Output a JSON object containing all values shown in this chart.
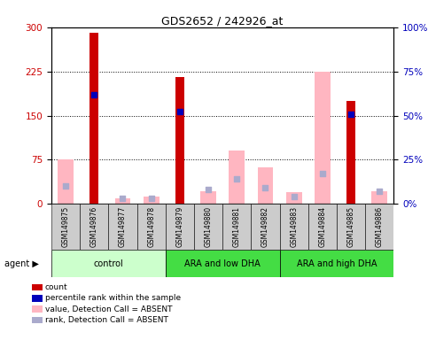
{
  "title": "GDS2652 / 242926_at",
  "samples": [
    "GSM149875",
    "GSM149876",
    "GSM149877",
    "GSM149878",
    "GSM149879",
    "GSM149880",
    "GSM149881",
    "GSM149882",
    "GSM149883",
    "GSM149884",
    "GSM149885",
    "GSM149886"
  ],
  "group_defs": [
    {
      "label": "control",
      "bg": "#CCFFCC",
      "start": 0,
      "end": 4
    },
    {
      "label": "ARA and low DHA",
      "bg": "#44DD44",
      "start": 4,
      "end": 8
    },
    {
      "label": "ARA and high DHA",
      "bg": "#44DD44",
      "start": 8,
      "end": 12
    }
  ],
  "count_values": [
    null,
    290,
    null,
    null,
    215,
    null,
    null,
    null,
    null,
    null,
    175,
    null
  ],
  "percentile_values": [
    null,
    185,
    null,
    null,
    157,
    null,
    null,
    null,
    null,
    null,
    152,
    null
  ],
  "absent_value": [
    75,
    null,
    10,
    12,
    null,
    22,
    90,
    62,
    20,
    225,
    null,
    22
  ],
  "absent_rank_left": [
    30,
    null,
    10,
    10,
    null,
    25,
    43,
    28,
    12,
    52,
    null,
    22
  ],
  "ylim_left": [
    0,
    300
  ],
  "ylim_right": [
    0,
    100
  ],
  "yticks_left": [
    0,
    75,
    150,
    225,
    300
  ],
  "yticks_right": [
    0,
    25,
    50,
    75,
    100
  ],
  "count_color": "#CC0000",
  "percentile_color": "#0000BB",
  "absent_value_color": "#FFB6C1",
  "absent_rank_color": "#AAAACC",
  "axis_label_color_left": "#CC0000",
  "axis_label_color_right": "#0000BB",
  "background_color": "#FFFFFF",
  "legend_items": [
    {
      "color": "#CC0000",
      "marker": "s",
      "label": "count"
    },
    {
      "color": "#0000BB",
      "marker": "s",
      "label": "percentile rank within the sample"
    },
    {
      "color": "#FFB6C1",
      "marker": "s",
      "label": "value, Detection Call = ABSENT"
    },
    {
      "color": "#AAAACC",
      "marker": "s",
      "label": "rank, Detection Call = ABSENT"
    }
  ]
}
